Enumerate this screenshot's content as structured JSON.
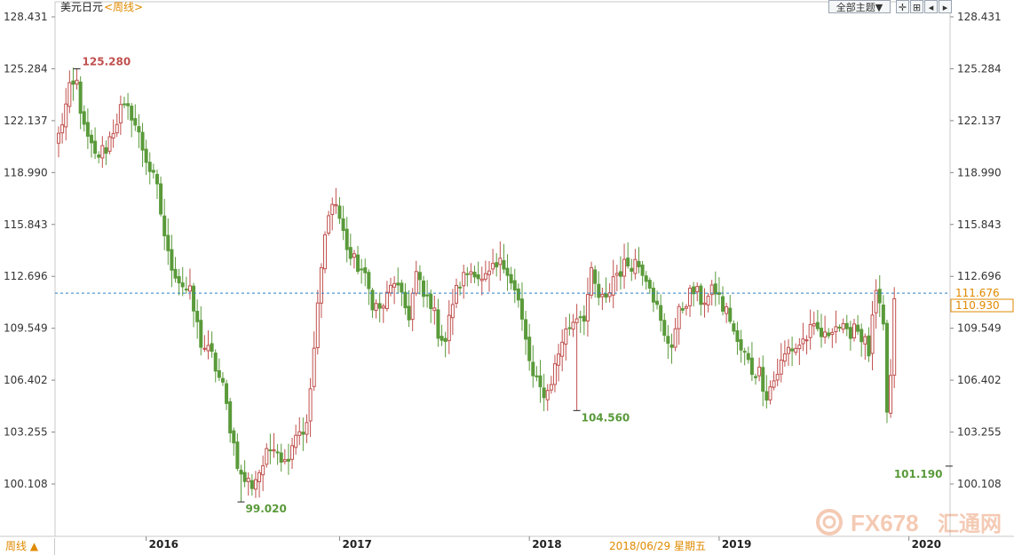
{
  "header": {
    "symbol": "美元日元",
    "period_suffix": "<周线>",
    "theme_button": "全部主题▼"
  },
  "footer": {
    "period_button": "周线 ▲",
    "cursor_date": "2018/06/29 星期五"
  },
  "watermark": {
    "text": "FX678",
    "cn": "汇通网"
  },
  "colors": {
    "up": "#c0504d",
    "down": "#5a9a3a",
    "dotted_line": "#2a7fc4",
    "price_box": "#e08a00"
  },
  "chart_data": {
    "type": "candlestick",
    "y_ticks": [
      "128.431",
      "125.284",
      "122.137",
      "118.990",
      "115.843",
      "112.696",
      "109.549",
      "106.402",
      "103.255",
      "100.108"
    ],
    "ylim": [
      98.0,
      129.0
    ],
    "x_years": [
      {
        "label": "2016",
        "index": 24
      },
      {
        "label": "2017",
        "index": 77
      },
      {
        "label": "2018",
        "index": 129
      },
      {
        "label": "2019",
        "index": 181
      },
      {
        "label": "2020",
        "index": 233
      }
    ],
    "annotations": [
      {
        "label": "125.280",
        "value": 125.28,
        "index": 5,
        "side": "above",
        "color": "up"
      },
      {
        "label": "99.020",
        "value": 99.02,
        "index": 50,
        "side": "below",
        "color": "down"
      },
      {
        "label": "104.560",
        "value": 104.56,
        "index": 142,
        "side": "below",
        "color": "down"
      },
      {
        "label": "101.190",
        "value": 101.19,
        "index": 244,
        "side": "below-left",
        "color": "down"
      }
    ],
    "dotted_level": 111.676,
    "right_labels": [
      {
        "label": "111.676",
        "value": 111.676,
        "boxed": false
      },
      {
        "label": "110.930",
        "value": 110.93,
        "boxed": true
      }
    ],
    "anchors": [
      [
        0,
        121.2
      ],
      [
        3,
        123.9
      ],
      [
        5,
        124.4
      ],
      [
        7,
        121.5
      ],
      [
        10,
        119.9
      ],
      [
        13,
        120.5
      ],
      [
        17,
        122.8
      ],
      [
        20,
        122.6
      ],
      [
        23,
        120.5
      ],
      [
        27,
        117.9
      ],
      [
        30,
        113.9
      ],
      [
        33,
        112.5
      ],
      [
        36,
        111.6
      ],
      [
        39,
        108.7
      ],
      [
        42,
        107.8
      ],
      [
        45,
        105.9
      ],
      [
        48,
        102.5
      ],
      [
        50,
        100.5
      ],
      [
        53,
        100.1
      ],
      [
        56,
        101.3
      ],
      [
        59,
        102.7
      ],
      [
        62,
        101.4
      ],
      [
        65,
        103.3
      ],
      [
        68,
        103.5
      ],
      [
        70,
        108.3
      ],
      [
        72,
        113.1
      ],
      [
        74,
        116.9
      ],
      [
        76,
        117.1
      ],
      [
        78,
        115.3
      ],
      [
        80,
        113.8
      ],
      [
        83,
        113.1
      ],
      [
        86,
        111.2
      ],
      [
        88,
        110.6
      ],
      [
        90,
        111.4
      ],
      [
        92,
        112.5
      ],
      [
        94,
        111.2
      ],
      [
        96,
        110.4
      ],
      [
        98,
        112.8
      ],
      [
        100,
        111.4
      ],
      [
        102,
        111.2
      ],
      [
        104,
        109.4
      ],
      [
        106,
        108.8
      ],
      [
        108,
        111.2
      ],
      [
        110,
        112.3
      ],
      [
        112,
        112.9
      ],
      [
        114,
        113.2
      ],
      [
        116,
        112.3
      ],
      [
        118,
        112.7
      ],
      [
        121,
        113.4
      ],
      [
        123,
        113.3
      ],
      [
        126,
        111.1
      ],
      [
        128,
        108.7
      ],
      [
        130,
        106.5
      ],
      [
        132,
        105.8
      ],
      [
        134,
        105.7
      ],
      [
        136,
        107.2
      ],
      [
        138,
        108.9
      ],
      [
        140,
        109.7
      ],
      [
        142,
        110.4
      ],
      [
        144,
        110.4
      ],
      [
        146,
        112.7
      ],
      [
        148,
        111.4
      ],
      [
        150,
        111.1
      ],
      [
        152,
        112.7
      ],
      [
        154,
        113.1
      ],
      [
        156,
        113.5
      ],
      [
        158,
        113.6
      ],
      [
        160,
        113.2
      ],
      [
        162,
        112.4
      ],
      [
        164,
        110.7
      ],
      [
        166,
        108.9
      ],
      [
        168,
        108.7
      ],
      [
        170,
        110.4
      ],
      [
        172,
        111.3
      ],
      [
        174,
        111.8
      ],
      [
        176,
        111.3
      ],
      [
        178,
        111.4
      ],
      [
        180,
        111.9
      ],
      [
        182,
        110.8
      ],
      [
        184,
        110.2
      ],
      [
        186,
        108.5
      ],
      [
        188,
        107.9
      ],
      [
        190,
        107.0
      ],
      [
        192,
        106.9
      ],
      [
        194,
        105.6
      ],
      [
        196,
        106.4
      ],
      [
        198,
        107.4
      ],
      [
        200,
        108.3
      ],
      [
        202,
        108.4
      ],
      [
        204,
        108.8
      ],
      [
        206,
        109.3
      ],
      [
        208,
        109.4
      ],
      [
        210,
        108.9
      ],
      [
        212,
        109.8
      ],
      [
        214,
        109.7
      ],
      [
        216,
        109.0
      ],
      [
        218,
        109.9
      ],
      [
        220,
        109.1
      ],
      [
        222,
        108.1
      ],
      [
        224,
        111.6
      ],
      [
        226,
        109.5
      ],
      [
        227,
        104.5
      ],
      [
        228,
        106.5
      ],
      [
        229,
        110.9
      ]
    ],
    "total_candles": 230
  }
}
